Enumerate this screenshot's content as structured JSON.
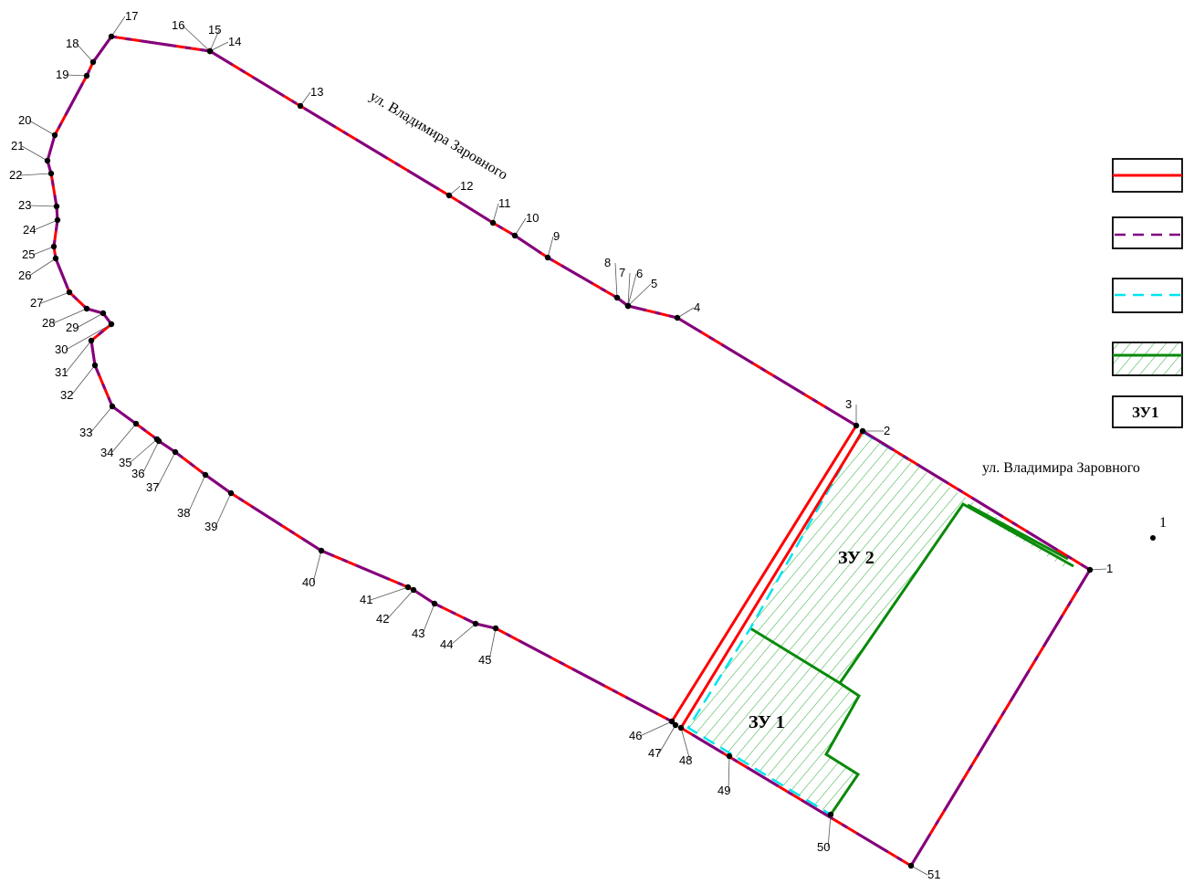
{
  "streets": {
    "top": "ул. Владимира Заровного",
    "right": "ул. Владимира Заровного"
  },
  "plots": {
    "zu1": "ЗУ 1",
    "zu2": "ЗУ 2"
  },
  "legend": {
    "zu_label": "ЗУ1"
  },
  "colors": {
    "boundary_red": "#ff0000",
    "boundary_purple": "#800080",
    "dashed_cyan": "#00e5ee",
    "plot_green": "#0a8a0a",
    "hatch_green": "#3cb043",
    "point": "#000000"
  },
  "points": [
    {
      "id": "p1",
      "label": "1"
    },
    {
      "id": "p2",
      "label": "2"
    },
    {
      "id": "p3",
      "label": "3"
    },
    {
      "id": "p4",
      "label": "4"
    },
    {
      "id": "p5",
      "label": "5"
    },
    {
      "id": "p6",
      "label": "6"
    },
    {
      "id": "p7",
      "label": "7"
    },
    {
      "id": "p8",
      "label": "8"
    },
    {
      "id": "p9",
      "label": "9"
    },
    {
      "id": "p10",
      "label": "10"
    },
    {
      "id": "p11",
      "label": "11"
    },
    {
      "id": "p12",
      "label": "12"
    },
    {
      "id": "p13",
      "label": "13"
    },
    {
      "id": "p14",
      "label": "14"
    },
    {
      "id": "p15",
      "label": "15"
    },
    {
      "id": "p16",
      "label": "16"
    },
    {
      "id": "p17",
      "label": "17"
    },
    {
      "id": "p18",
      "label": "18"
    },
    {
      "id": "p19",
      "label": "19"
    },
    {
      "id": "p20",
      "label": "20"
    },
    {
      "id": "p21",
      "label": "21"
    },
    {
      "id": "p22",
      "label": "22"
    },
    {
      "id": "p23",
      "label": "23"
    },
    {
      "id": "p24",
      "label": "24"
    },
    {
      "id": "p25",
      "label": "25"
    },
    {
      "id": "p26",
      "label": "26"
    },
    {
      "id": "p27",
      "label": "27"
    },
    {
      "id": "p28",
      "label": "28"
    },
    {
      "id": "p29",
      "label": "29"
    },
    {
      "id": "p30",
      "label": "30"
    },
    {
      "id": "p31",
      "label": "31"
    },
    {
      "id": "p32",
      "label": "32"
    },
    {
      "id": "p33",
      "label": "33"
    },
    {
      "id": "p34",
      "label": "34"
    },
    {
      "id": "p35",
      "label": "35"
    },
    {
      "id": "p36",
      "label": "36"
    },
    {
      "id": "p37",
      "label": "37"
    },
    {
      "id": "p38",
      "label": "38"
    },
    {
      "id": "p39",
      "label": "39"
    },
    {
      "id": "p40",
      "label": "40"
    },
    {
      "id": "p41",
      "label": "41"
    },
    {
      "id": "p42",
      "label": "42"
    },
    {
      "id": "p43",
      "label": "43"
    },
    {
      "id": "p44",
      "label": "44"
    },
    {
      "id": "p45",
      "label": "45"
    },
    {
      "id": "p46",
      "label": "46"
    },
    {
      "id": "p47",
      "label": "47"
    },
    {
      "id": "p48",
      "label": "48"
    },
    {
      "id": "p49",
      "label": "49"
    },
    {
      "id": "p50",
      "label": "50"
    },
    {
      "id": "p51",
      "label": "51"
    },
    {
      "id": "standalone",
      "label": "1"
    }
  ]
}
